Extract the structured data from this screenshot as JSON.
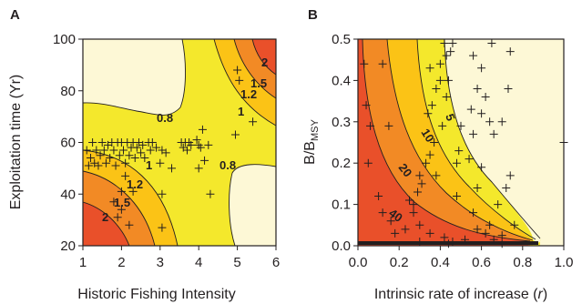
{
  "colors": {
    "c_cream": "#fdf8d6",
    "c_yellow": "#f4e82c",
    "c_gold": "#fbc316",
    "c_orange": "#f28a25",
    "c_red": "#e9502a",
    "ink": "#231f20"
  },
  "chart_data": [
    {
      "type": "contour",
      "panel_label": "A",
      "xlabel": "Historic Fishing Intensity",
      "ylabel": "Exploitation time (Yr)",
      "xlim": [
        1,
        6
      ],
      "ylim": [
        20,
        100
      ],
      "xticks": [
        "1",
        "2",
        "3",
        "4",
        "5",
        "6"
      ],
      "yticks": [
        "20",
        "40",
        "60",
        "80",
        "100"
      ],
      "contour_labels": [
        "2",
        "1.5",
        "1.2",
        "1",
        "0.8",
        "0.8",
        "1",
        "1.2",
        "1.5",
        "2"
      ],
      "points": [
        [
          1.1,
          57
        ],
        [
          1.15,
          51
        ],
        [
          1.2,
          54
        ],
        [
          1.25,
          60
        ],
        [
          1.3,
          52
        ],
        [
          1.35,
          57
        ],
        [
          1.4,
          51
        ],
        [
          1.45,
          55
        ],
        [
          1.5,
          60
        ],
        [
          1.55,
          57
        ],
        [
          1.6,
          52
        ],
        [
          1.65,
          59
        ],
        [
          1.7,
          54
        ],
        [
          1.75,
          60
        ],
        [
          1.8,
          57
        ],
        [
          1.85,
          51
        ],
        [
          1.9,
          60
        ],
        [
          1.95,
          55
        ],
        [
          2.0,
          60
        ],
        [
          2.05,
          57
        ],
        [
          2.1,
          52
        ],
        [
          2.15,
          60
        ],
        [
          2.2,
          55
        ],
        [
          2.25,
          58
        ],
        [
          2.3,
          60
        ],
        [
          2.35,
          54
        ],
        [
          2.4,
          58
        ],
        [
          2.45,
          60
        ],
        [
          2.5,
          56
        ],
        [
          2.55,
          59
        ],
        [
          2.6,
          54
        ],
        [
          2.7,
          60
        ],
        [
          2.75,
          57
        ],
        [
          2.8,
          60
        ],
        [
          2.9,
          58
        ],
        [
          3.0,
          52
        ],
        [
          3.05,
          57
        ],
        [
          3.15,
          56
        ],
        [
          3.3,
          50
        ],
        [
          3.55,
          60
        ],
        [
          3.6,
          58
        ],
        [
          3.65,
          60
        ],
        [
          3.7,
          57
        ],
        [
          3.75,
          60
        ],
        [
          3.8,
          59
        ],
        [
          3.95,
          61
        ],
        [
          4.0,
          59
        ],
        [
          4.05,
          58
        ],
        [
          4.15,
          53
        ],
        [
          4.25,
          59
        ],
        [
          4.0,
          50
        ],
        [
          2.1,
          47
        ],
        [
          2.0,
          41
        ],
        [
          2.3,
          41
        ],
        [
          1.8,
          37
        ],
        [
          2.0,
          34
        ],
        [
          3.05,
          40
        ],
        [
          3.05,
          27
        ],
        [
          1.9,
          31
        ],
        [
          2.2,
          28
        ],
        [
          4.1,
          65
        ],
        [
          5.0,
          88
        ],
        [
          5.05,
          84
        ],
        [
          5.4,
          68
        ],
        [
          4.3,
          40
        ],
        [
          4.95,
          63
        ]
      ]
    },
    {
      "type": "contour",
      "panel_label": "B",
      "xlabel_parts": [
        "Intrinsic rate of increase (",
        "r",
        ")"
      ],
      "ylabel_parts": [
        "B/B",
        "MSY"
      ],
      "xlim": [
        0.0,
        1.0
      ],
      "ylim": [
        0.0,
        0.5
      ],
      "xticks": [
        "0.0",
        "0.2",
        "0.4",
        "0.6",
        "0.8",
        "1.0"
      ],
      "yticks": [
        "0.0",
        "0.1",
        "0.2",
        "0.3",
        "0.4",
        "0.5"
      ],
      "contour_labels": [
        "40",
        "20",
        "10",
        "5"
      ],
      "points": [
        [
          0.03,
          0.44
        ],
        [
          0.04,
          0.34
        ],
        [
          0.06,
          0.29
        ],
        [
          0.12,
          0.44
        ],
        [
          0.15,
          0.29
        ],
        [
          0.05,
          0.2
        ],
        [
          0.1,
          0.12
        ],
        [
          0.12,
          0.08
        ],
        [
          0.16,
          0.06
        ],
        [
          0.23,
          0.04
        ],
        [
          0.3,
          0.05
        ],
        [
          0.18,
          0.03
        ],
        [
          0.35,
          0.03
        ],
        [
          0.42,
          0.02
        ],
        [
          0.3,
          0.01
        ],
        [
          0.46,
          0.01
        ],
        [
          0.52,
          0.015
        ],
        [
          0.58,
          0.04
        ],
        [
          0.62,
          0.03
        ],
        [
          0.66,
          0.015
        ],
        [
          0.7,
          0.025
        ],
        [
          0.7,
          0.005
        ],
        [
          0.44,
          0.005
        ],
        [
          0.42,
          0.49
        ],
        [
          0.46,
          0.49
        ],
        [
          0.45,
          0.47
        ],
        [
          0.43,
          0.46
        ],
        [
          0.4,
          0.44
        ],
        [
          0.35,
          0.43
        ],
        [
          0.4,
          0.4
        ],
        [
          0.44,
          0.4
        ],
        [
          0.38,
          0.38
        ],
        [
          0.43,
          0.36
        ],
        [
          0.36,
          0.34
        ],
        [
          0.34,
          0.32
        ],
        [
          0.41,
          0.29
        ],
        [
          0.37,
          0.25
        ],
        [
          0.35,
          0.22
        ],
        [
          0.33,
          0.2
        ],
        [
          0.38,
          0.17
        ],
        [
          0.3,
          0.17
        ],
        [
          0.31,
          0.15
        ],
        [
          0.29,
          0.13
        ],
        [
          0.27,
          0.1
        ],
        [
          0.25,
          0.11
        ],
        [
          0.27,
          0.08
        ],
        [
          0.56,
          0.46
        ],
        [
          0.6,
          0.43
        ],
        [
          0.65,
          0.49
        ],
        [
          0.74,
          0.47
        ],
        [
          0.58,
          0.38
        ],
        [
          0.62,
          0.36
        ],
        [
          0.73,
          0.38
        ],
        [
          0.55,
          0.33
        ],
        [
          0.6,
          0.32
        ],
        [
          0.64,
          0.3
        ],
        [
          0.7,
          0.3
        ],
        [
          0.5,
          0.29
        ],
        [
          0.56,
          0.27
        ],
        [
          0.66,
          0.27
        ],
        [
          0.49,
          0.23
        ],
        [
          0.54,
          0.21
        ],
        [
          0.48,
          0.2
        ],
        [
          0.6,
          0.19
        ],
        [
          0.48,
          0.12
        ],
        [
          0.56,
          0.08
        ],
        [
          0.58,
          0.14
        ],
        [
          0.68,
          0.1
        ],
        [
          0.72,
          0.14
        ],
        [
          0.74,
          0.17
        ],
        [
          1.0,
          0.25
        ],
        [
          0.64,
          0.05
        ],
        [
          0.76,
          0.05
        ]
      ]
    }
  ]
}
